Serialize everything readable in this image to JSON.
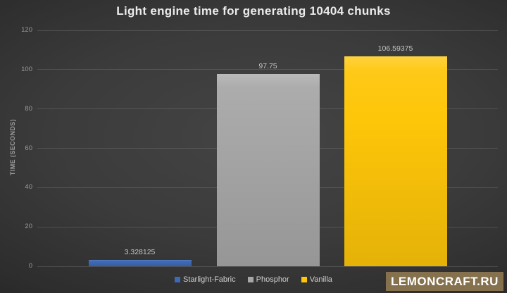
{
  "chart_data": {
    "type": "bar",
    "title": "Light engine time for generating 10404 chunks",
    "categories": [
      "Starlight-Fabric",
      "Phosphor",
      "Vanilla"
    ],
    "values": [
      3.328125,
      97.75,
      106.59375
    ],
    "value_labels": [
      "3.328125",
      "97.75",
      "106.59375"
    ],
    "bar_colors": [
      "#3d69b6",
      "#a7a7a7",
      "#fec609"
    ],
    "xlabel": "",
    "ylabel": "TIME (SECONDS)",
    "ylim": [
      0,
      120
    ],
    "yticks": [
      0,
      20,
      40,
      60,
      80,
      100,
      120
    ],
    "grid": true,
    "legend_position": "bottom"
  },
  "colors": {
    "background_center": "#444444",
    "background_edge": "#222222",
    "title_text": "#ebebeb",
    "axis_text": "#9a9a9a",
    "data_label_text": "#c3c3c3",
    "legend_text": "#cfcfcf",
    "gridline": "rgba(255,255,255,0.13)"
  },
  "watermark": {
    "text": "LEMONCRAFT.RU",
    "bg": "#85714d",
    "color": "#ffffff"
  }
}
